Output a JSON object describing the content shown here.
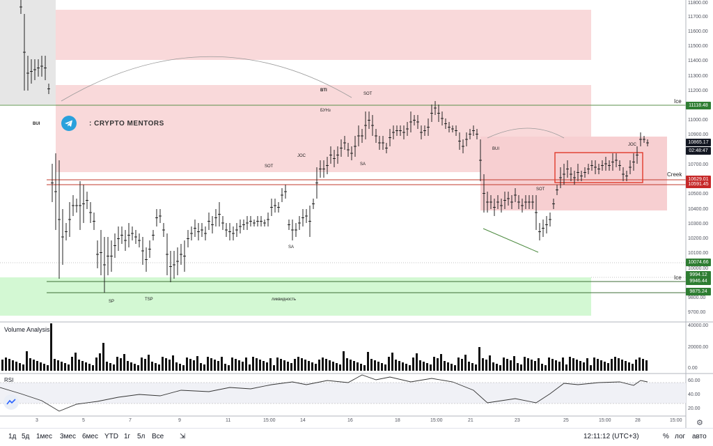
{
  "price_axis": [
    "11800.00",
    "11700.00",
    "11600.00",
    "11500.00",
    "11400.00",
    "11300.00",
    "11200.00",
    "11000.00",
    "10900.00",
    "10700.00",
    "10600.00",
    "10500.00",
    "10400.00",
    "10300.00",
    "10200.00",
    "10100.00",
    "10000.00",
    "9800.00",
    "9700.00"
  ],
  "volume_axis": [
    "40000.00",
    "20000.00",
    "0.00"
  ],
  "rsi_axis": [
    "60.00",
    "40.00",
    "20.00"
  ],
  "price_labels": [
    {
      "text": "11118.48",
      "bg": "#2e7d32"
    },
    {
      "text": "10865.17",
      "bg": "#131722"
    },
    {
      "text": "02:48:47",
      "bg": "#131722"
    },
    {
      "text": "10629.01",
      "bg": "#c62828"
    },
    {
      "text": "10591.45",
      "bg": "#c62828"
    },
    {
      "text": "10074.66",
      "bg": "#2e7d32"
    },
    {
      "text": "9994.12",
      "bg": "#2e7d32"
    },
    {
      "text": "9946.44",
      "bg": "#2e7d32"
    },
    {
      "text": "9875.24",
      "bg": "#2e7d32"
    }
  ],
  "line_labels": {
    "ice_top": "Ice",
    "ice_bottom": "Ice",
    "creek": "Creek"
  },
  "annotations": {
    "bui_left": "BUI",
    "bti": "BTI",
    "buyh": "БУНз",
    "sot_top": "SOT",
    "sot_mid": "SOT",
    "joc_mid": "JOC",
    "sa_mid": "SA",
    "sa_low": "SA",
    "sp": "SP",
    "tsp": "TSP",
    "liquidity": "ликвидность",
    "bui_right": "BUI",
    "sot_right": "SOT",
    "joc_right": "JOC"
  },
  "telegram": {
    "text": ": CRYPTO MENTORS",
    "icon": "telegram-icon"
  },
  "panels": {
    "volume": "Volume Analysis",
    "rsi": "RSI"
  },
  "time_axis": [
    "3",
    "5",
    "7",
    "9",
    "11",
    "15:00",
    "14",
    "16",
    "18",
    "15:00",
    "21",
    "23",
    "25",
    "15:00",
    "28",
    "15:00"
  ],
  "timeframes": [
    "1д",
    "5д",
    "1мес",
    "3мес",
    "6мес",
    "YTD",
    "1г",
    "5л",
    "Все"
  ],
  "status": {
    "clock": "12:11:12 (UTC+3)",
    "percent": "%",
    "log": "лог",
    "auto": "авто"
  },
  "colors": {
    "zone_red": "#f6c9cb",
    "zone_green": "#c9f5c9",
    "ice_line": "#4c8a3f",
    "creek_line": "#c0392b",
    "box": "#e0392b"
  }
}
